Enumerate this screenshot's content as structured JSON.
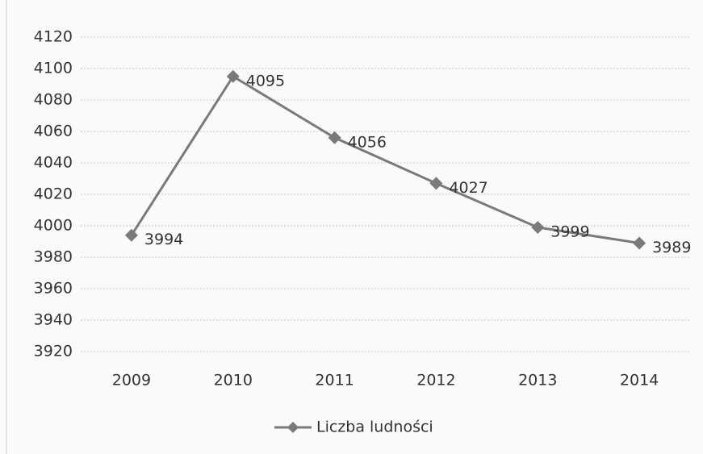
{
  "chart_data": {
    "type": "line",
    "categories": [
      "2009",
      "2010",
      "2011",
      "2012",
      "2013",
      "2014"
    ],
    "series": [
      {
        "name": "Liczba ludności",
        "color": "#7a7a7a",
        "values": [
          3994,
          4095,
          4056,
          4027,
          3999,
          3989
        ]
      }
    ],
    "ylim": [
      3920,
      4120
    ],
    "yticks": [
      3920,
      3940,
      3960,
      3980,
      4000,
      4020,
      4040,
      4060,
      4080,
      4100,
      4120
    ],
    "grid": true,
    "legend": "bottom"
  }
}
